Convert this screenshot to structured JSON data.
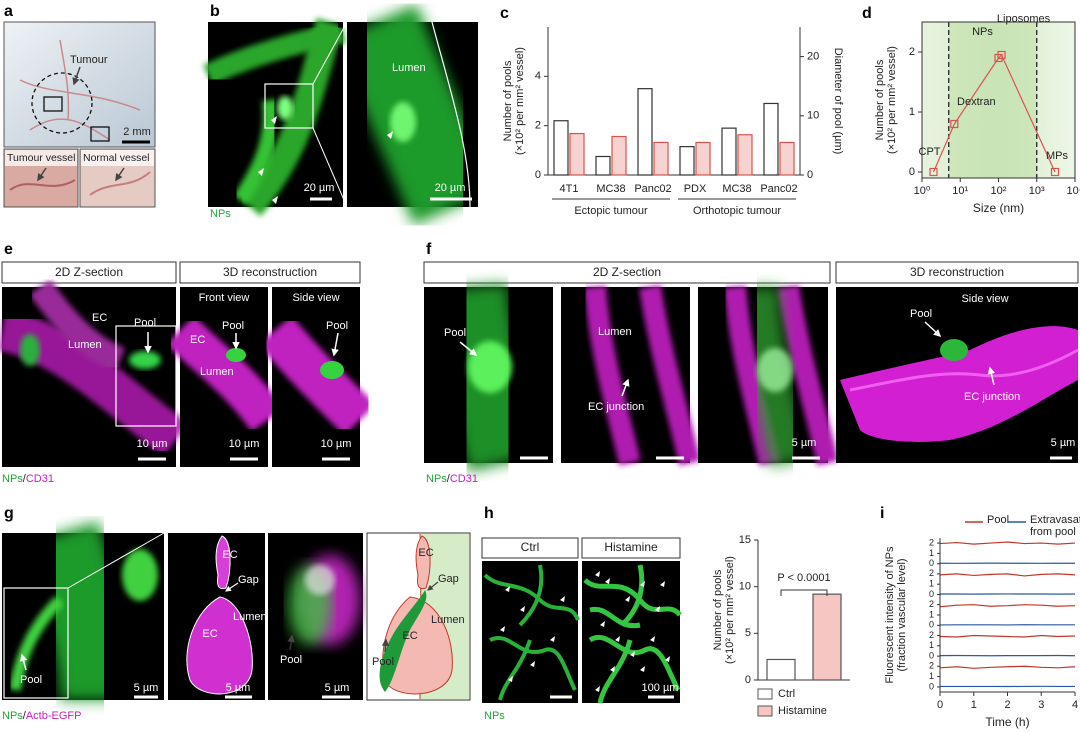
{
  "figure": {
    "a": {
      "letter": "a",
      "labels": [
        "Tumour",
        "2 mm",
        "Tumour vessel",
        "Normal vessel"
      ]
    },
    "b": {
      "letter": "b",
      "labels": [
        "Lumen",
        "20 µm",
        "20 µm"
      ],
      "stain": "NPs"
    },
    "e": {
      "letter": "e",
      "headers": [
        "2D Z-section",
        "3D reconstruction"
      ],
      "views": [
        "Front view",
        "Side view"
      ],
      "labels": [
        "EC",
        "Lumen",
        "Pool",
        "Pool",
        "EC",
        "Lumen",
        "Pool"
      ],
      "scale_bars": [
        "10 µm",
        "10 µm",
        "10 µm"
      ],
      "stain": [
        "NPs",
        "/",
        "CD31"
      ]
    },
    "f": {
      "letter": "f",
      "headers": [
        "2D Z-section",
        "3D reconstruction"
      ],
      "views": [
        "Side view"
      ],
      "labels": [
        "Pool",
        "Lumen",
        "EC junction",
        "Pool",
        "EC junction"
      ],
      "scale_bars": [
        "5 µm",
        "5 µm"
      ],
      "stain": [
        "NPs",
        "/",
        "CD31"
      ]
    },
    "g": {
      "letter": "g",
      "labels": [
        "Pool",
        "EC",
        "Gap",
        "Lumen",
        "EC",
        "Pool",
        "EC",
        "Gap",
        "Lumen",
        "EC",
        "Pool"
      ],
      "scale_bars": [
        "5 µm",
        "5 µm",
        "5 µm"
      ],
      "stain": [
        "NPs",
        "/",
        "Actb-EGFP"
      ]
    },
    "h": {
      "letter": "h",
      "headers": [
        "Ctrl",
        "Histamine"
      ],
      "scale_bars": [
        "100 µm"
      ],
      "stain": "NPs"
    }
  },
  "chart_data": [
    {
      "panel": "c",
      "type": "bar",
      "ylabel": [
        "Number of pools",
        "(×10² per mm² vessel)"
      ],
      "y2label": "Diameter of pool (µm)",
      "groups": [
        {
          "name": "Ectopic tumour",
          "categories": [
            "4T1",
            "MC38",
            "Panc02"
          ]
        },
        {
          "name": "Orthotopic tumour",
          "categories": [
            "PDX",
            "MC38",
            "Panc02"
          ]
        }
      ],
      "series": [
        {
          "color": "#ffffff",
          "edge": "#333333",
          "values": [
            2.2,
            0.75,
            3.5,
            1.15,
            1.9,
            2.9
          ]
        },
        {
          "color": "#f6d3d0",
          "edge": "#d9534f",
          "axis": "y2",
          "values": [
            7,
            6.5,
            5.5,
            5.5,
            6.8,
            5.5
          ]
        }
      ],
      "ylim": [
        0,
        6
      ],
      "yticks": [
        0,
        2,
        4
      ],
      "y2lim": [
        0,
        25
      ],
      "y2ticks": [
        0,
        10,
        20
      ]
    },
    {
      "panel": "d",
      "type": "line",
      "xlabel": "Size (nm)",
      "ylabel": [
        "Number of pools",
        "(×10² per mm² vessel)"
      ],
      "xscale": "log",
      "xlim": [
        1,
        10000
      ],
      "xticks": [
        {
          "value": 1,
          "label": "10⁰"
        },
        {
          "value": 10,
          "label": "10¹"
        },
        {
          "value": 100,
          "label": "10²"
        },
        {
          "value": 1000,
          "label": "10³"
        },
        {
          "value": 10000,
          "label": "10⁴"
        }
      ],
      "ylim": [
        -0.1,
        2.5
      ],
      "yticks": [
        0,
        1,
        2
      ],
      "vlines": [
        5,
        1000
      ],
      "x": [
        2,
        7,
        100,
        120,
        3000
      ],
      "series": [
        {
          "color": "#d9534f",
          "values": [
            0,
            0.8,
            1.9,
            1.95,
            0
          ]
        }
      ],
      "point_labels": [
        "CPT",
        "Dextran",
        "NPs",
        "Liposomes",
        "MPs"
      ]
    },
    {
      "type": "bar",
      "ylabel": [
        "Number of pools",
        "(×10² per mm² vessel)"
      ],
      "categories": [
        "Ctrl",
        "Histamine"
      ],
      "values": [
        2.2,
        9.2
      ],
      "colors": [
        "#ffffff",
        "#f6c6c2"
      ],
      "edge": "#555555",
      "ylim": [
        0,
        15
      ],
      "yticks": [
        0,
        5,
        10,
        15
      ],
      "annotation": "P < 0.0001"
    },
    {
      "panel": "i",
      "type": "line",
      "xlabel": "Time (h)",
      "ylabel": [
        "Fluorescent intensity of NPs",
        "(fraction vascular level)"
      ],
      "xlim": [
        0,
        4
      ],
      "xticks": [
        0,
        1,
        2,
        3,
        4
      ],
      "ylim": [
        -0.2,
        2.2
      ],
      "yticks": [
        0,
        1,
        2
      ],
      "x": [
        0,
        0.5,
        1,
        1.5,
        2,
        2.5,
        3,
        3.5,
        4
      ],
      "series": [
        {
          "name": "Pool",
          "color": "#c0392b",
          "traces": [
            [
              1.95,
              2.05,
              1.9,
              2.0,
              2.1,
              1.95,
              2.0,
              1.9,
              2.0
            ],
            [
              1.9,
              2.0,
              1.85,
              1.95,
              2.0,
              1.8,
              1.95,
              2.0,
              1.9
            ],
            [
              1.8,
              1.95,
              2.0,
              1.85,
              1.9,
              2.0,
              1.95,
              1.85,
              1.9
            ],
            [
              1.9,
              1.85,
              2.0,
              1.95,
              1.9,
              1.85,
              2.0,
              1.9,
              1.95
            ],
            [
              1.85,
              1.95,
              1.8,
              1.9,
              1.95,
              2.0,
              1.9,
              1.85,
              1.95
            ]
          ]
        },
        {
          "name": "Extravasation from pool",
          "color": "#2c5aa0",
          "traces": [
            [
              0.05,
              0.04,
              0.05,
              0.06,
              0.05,
              0.05,
              0.04,
              0.05,
              0.05
            ],
            [
              0.05,
              0.05,
              0.04,
              0.05,
              0.06,
              0.05,
              0.05,
              0.04,
              0.05
            ],
            [
              0.04,
              0.05,
              0.05,
              0.05,
              0.04,
              0.06,
              0.05,
              0.05,
              0.05
            ],
            [
              0.05,
              0.06,
              0.05,
              0.04,
              0.05,
              0.05,
              0.05,
              0.06,
              0.04
            ],
            [
              0.05,
              0.05,
              0.05,
              0.05,
              0.04,
              0.05,
              0.06,
              0.05,
              0.05
            ]
          ]
        }
      ]
    }
  ]
}
